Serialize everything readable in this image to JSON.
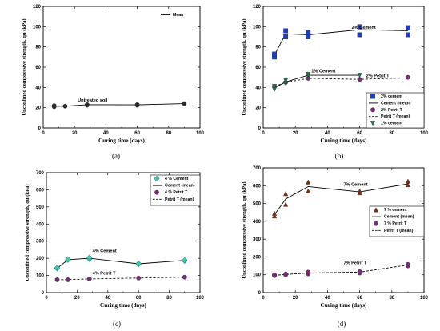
{
  "chart_data": [
    {
      "id": "a",
      "type": "scatter",
      "caption": "(a)",
      "xlabel": "Curing time (days)",
      "ylabel": "Unconfined compressive strength, qu (kPa)",
      "xlim": [
        0,
        100
      ],
      "ylim": [
        0,
        120
      ],
      "xticks": [
        0,
        20,
        40,
        60,
        80,
        100
      ],
      "yticks": [
        0,
        20,
        40,
        60,
        80,
        100,
        120
      ],
      "series": [
        {
          "name": "",
          "marker": "circle",
          "color": "#2b2b2b",
          "points": [
            [
              7,
              22
            ],
            [
              7,
              21
            ],
            [
              14,
              21.5
            ],
            [
              28,
              23
            ],
            [
              28,
              22.5
            ],
            [
              60,
              22.5
            ],
            [
              60,
              23
            ],
            [
              90,
              24
            ]
          ]
        },
        {
          "name": "Mean",
          "line": "solid",
          "color": "#000000",
          "points": [
            [
              7,
              21.5
            ],
            [
              14,
              21.5
            ],
            [
              28,
              23
            ],
            [
              60,
              22.8
            ],
            [
              90,
              24
            ]
          ]
        }
      ],
      "annotations": [
        {
          "text": "Untreated soil",
          "x": 22,
          "y": 26
        }
      ],
      "legend": {
        "position": "top-right",
        "entries": [
          {
            "name": "Mean",
            "symbol": "line-solid"
          }
        ]
      }
    },
    {
      "id": "b",
      "type": "scatter",
      "caption": "(b)",
      "xlabel": "Curing time (days)",
      "ylabel": "Unconfined compressive strength, qu (kPa)",
      "xlim": [
        0,
        100
      ],
      "ylim": [
        0,
        120
      ],
      "xticks": [
        0,
        20,
        40,
        60,
        80,
        100
      ],
      "yticks": [
        0,
        20,
        40,
        60,
        80,
        100,
        120
      ],
      "series": [
        {
          "name": "2% cement",
          "marker": "square",
          "color": "#1f3fbf",
          "points": [
            [
              7,
              70
            ],
            [
              7,
              73
            ],
            [
              14,
              90
            ],
            [
              14,
              96
            ],
            [
              28,
              90
            ],
            [
              28,
              94
            ],
            [
              60,
              92
            ],
            [
              60,
              100
            ],
            [
              90,
              92
            ],
            [
              90,
              99
            ]
          ]
        },
        {
          "name": "Cement (mean)",
          "line": "solid",
          "color": "#000000",
          "points": [
            [
              7,
              72
            ],
            [
              14,
              93
            ],
            [
              28,
              92
            ],
            [
              60,
              97
            ],
            [
              90,
              96
            ]
          ]
        },
        {
          "name": "2% Petrit T",
          "marker": "circle",
          "color": "#7a2a7a",
          "points": [
            [
              7,
              41
            ],
            [
              14,
              45
            ],
            [
              28,
              49
            ],
            [
              60,
              48
            ],
            [
              90,
              50
            ]
          ]
        },
        {
          "name": "Petrit T (mean)",
          "line": "dashed",
          "color": "#000000",
          "points": [
            [
              7,
              41
            ],
            [
              14,
              45
            ],
            [
              28,
              49
            ],
            [
              60,
              48
            ],
            [
              90,
              49.5
            ]
          ]
        },
        {
          "name": "1% cement",
          "marker": "triangle-down",
          "color": "#2e6b4a",
          "points": [
            [
              7,
              38
            ],
            [
              7,
              41
            ],
            [
              14,
              44
            ],
            [
              14,
              47
            ],
            [
              28,
              51
            ],
            [
              28,
              53
            ],
            [
              60,
              52
            ]
          ]
        },
        {
          "name": "",
          "line": "solid",
          "color": "#000000",
          "points": [
            [
              7,
              39.5
            ],
            [
              14,
              45.5
            ],
            [
              28,
              52
            ],
            [
              60,
              52
            ]
          ]
        }
      ],
      "annotations": [
        {
          "text": "2% Cement",
          "x": 55,
          "y": 98
        },
        {
          "text": "1% Cement",
          "x": 30,
          "y": 55
        },
        {
          "text": "2% Petrit T",
          "x": 64,
          "y": 50
        }
      ],
      "legend": {
        "position": "bottom-right",
        "entries": [
          {
            "name": "2% cement",
            "symbol": "square",
            "color": "#1f3fbf"
          },
          {
            "name": "Cement (mean)",
            "symbol": "line-solid"
          },
          {
            "name": "2% Petrit T",
            "symbol": "circle",
            "color": "#7a2a7a"
          },
          {
            "name": "Petrit T (mean)",
            "symbol": "line-dashed"
          },
          {
            "name": "1% cement",
            "symbol": "triangle-down",
            "color": "#2e6b4a"
          }
        ]
      }
    },
    {
      "id": "c",
      "type": "scatter",
      "caption": "(c)",
      "xlabel": "Curing time (days)",
      "ylabel": "Unconfined compressive strength, qu (kPa)",
      "xlim": [
        0,
        100
      ],
      "ylim": [
        0,
        700
      ],
      "xticks": [
        0,
        20,
        40,
        60,
        80,
        100
      ],
      "yticks": [
        0,
        100,
        200,
        300,
        400,
        500,
        600,
        700
      ],
      "series": [
        {
          "name": "4 % Cement",
          "marker": "diamond",
          "color": "#3fc9b0",
          "points": [
            [
              7,
              140
            ],
            [
              7,
              145
            ],
            [
              14,
              190
            ],
            [
              14,
              195
            ],
            [
              28,
              195
            ],
            [
              28,
              205
            ],
            [
              60,
              165
            ],
            [
              60,
              170
            ],
            [
              90,
              185
            ],
            [
              90,
              190
            ]
          ]
        },
        {
          "name": "Cement (mean)",
          "line": "solid",
          "color": "#000000",
          "points": [
            [
              7,
              142
            ],
            [
              14,
              192
            ],
            [
              28,
              200
            ],
            [
              60,
              168
            ],
            [
              90,
              188
            ]
          ]
        },
        {
          "name": "4 % Petrit T",
          "marker": "circle",
          "color": "#7a2a7a",
          "points": [
            [
              7,
              75
            ],
            [
              14,
              75
            ],
            [
              28,
              80
            ],
            [
              60,
              85
            ],
            [
              90,
              90
            ]
          ]
        },
        {
          "name": "Petrit T (mean)",
          "line": "dashed",
          "color": "#000000",
          "points": [
            [
              7,
              75
            ],
            [
              14,
              76
            ],
            [
              28,
              80
            ],
            [
              60,
              85
            ],
            [
              90,
              90
            ]
          ]
        }
      ],
      "annotations": [
        {
          "text": "4% Cement",
          "x": 30,
          "y": 235
        },
        {
          "text": "4% Petrit T",
          "x": 30,
          "y": 105
        }
      ],
      "legend": {
        "position": "top-right",
        "entries": [
          {
            "name": "4 % Cement",
            "symbol": "diamond",
            "color": "#3fc9b0"
          },
          {
            "name": "Cement (mean)",
            "symbol": "line-solid"
          },
          {
            "name": "4 % Petrit T",
            "symbol": "circle",
            "color": "#7a2a7a"
          },
          {
            "name": "Petrit T (mean)",
            "symbol": "line-dashed"
          }
        ]
      }
    },
    {
      "id": "d",
      "type": "scatter",
      "caption": "(d)",
      "xlabel": "Curing time (days)",
      "ylabel": "Unconfined compressive strength, qu (kPa)",
      "xlim": [
        0,
        100
      ],
      "ylim": [
        0,
        700
      ],
      "xticks": [
        0,
        20,
        40,
        60,
        80,
        100
      ],
      "yticks": [
        0,
        100,
        200,
        300,
        400,
        500,
        600,
        700
      ],
      "series": [
        {
          "name": "7 % cement",
          "marker": "triangle-up",
          "color": "#7a2f1e",
          "points": [
            [
              7,
              430
            ],
            [
              7,
              445
            ],
            [
              14,
              495
            ],
            [
              14,
              555
            ],
            [
              28,
              570
            ],
            [
              28,
              620
            ],
            [
              60,
              560
            ],
            [
              60,
              570
            ],
            [
              90,
              605
            ],
            [
              90,
              625
            ]
          ]
        },
        {
          "name": "Cement (mean)",
          "line": "solid",
          "color": "#000000",
          "points": [
            [
              7,
              437
            ],
            [
              14,
              525
            ],
            [
              28,
              595
            ],
            [
              60,
              565
            ],
            [
              90,
              610
            ]
          ]
        },
        {
          "name": "7 % Petrit T",
          "marker": "circle",
          "color": "#7a2a7a",
          "points": [
            [
              7,
              95
            ],
            [
              7,
              100
            ],
            [
              14,
              100
            ],
            [
              14,
              105
            ],
            [
              28,
              105
            ],
            [
              28,
              115
            ],
            [
              60,
              110
            ],
            [
              60,
              118
            ],
            [
              90,
              150
            ],
            [
              90,
              158
            ]
          ]
        },
        {
          "name": "Petrit T (mean)",
          "line": "dashed",
          "color": "#000000",
          "points": [
            [
              7,
              97
            ],
            [
              14,
              102
            ],
            [
              28,
              110
            ],
            [
              60,
              115
            ],
            [
              90,
              155
            ]
          ]
        }
      ],
      "annotations": [
        {
          "text": "7% Cement",
          "x": 50,
          "y": 600
        },
        {
          "text": "7% Petrit T",
          "x": 50,
          "y": 160
        }
      ],
      "legend": {
        "position": "top-right",
        "entries": [
          {
            "name": "7 % cement",
            "symbol": "triangle-up",
            "color": "#7a2f1e"
          },
          {
            "name": "Cement (mean)",
            "symbol": "line-solid"
          },
          {
            "name": "7 % Petrit T",
            "symbol": "circle",
            "color": "#7a2a7a"
          },
          {
            "name": "Petrit T (mean)",
            "symbol": "line-dashed"
          }
        ]
      }
    }
  ]
}
